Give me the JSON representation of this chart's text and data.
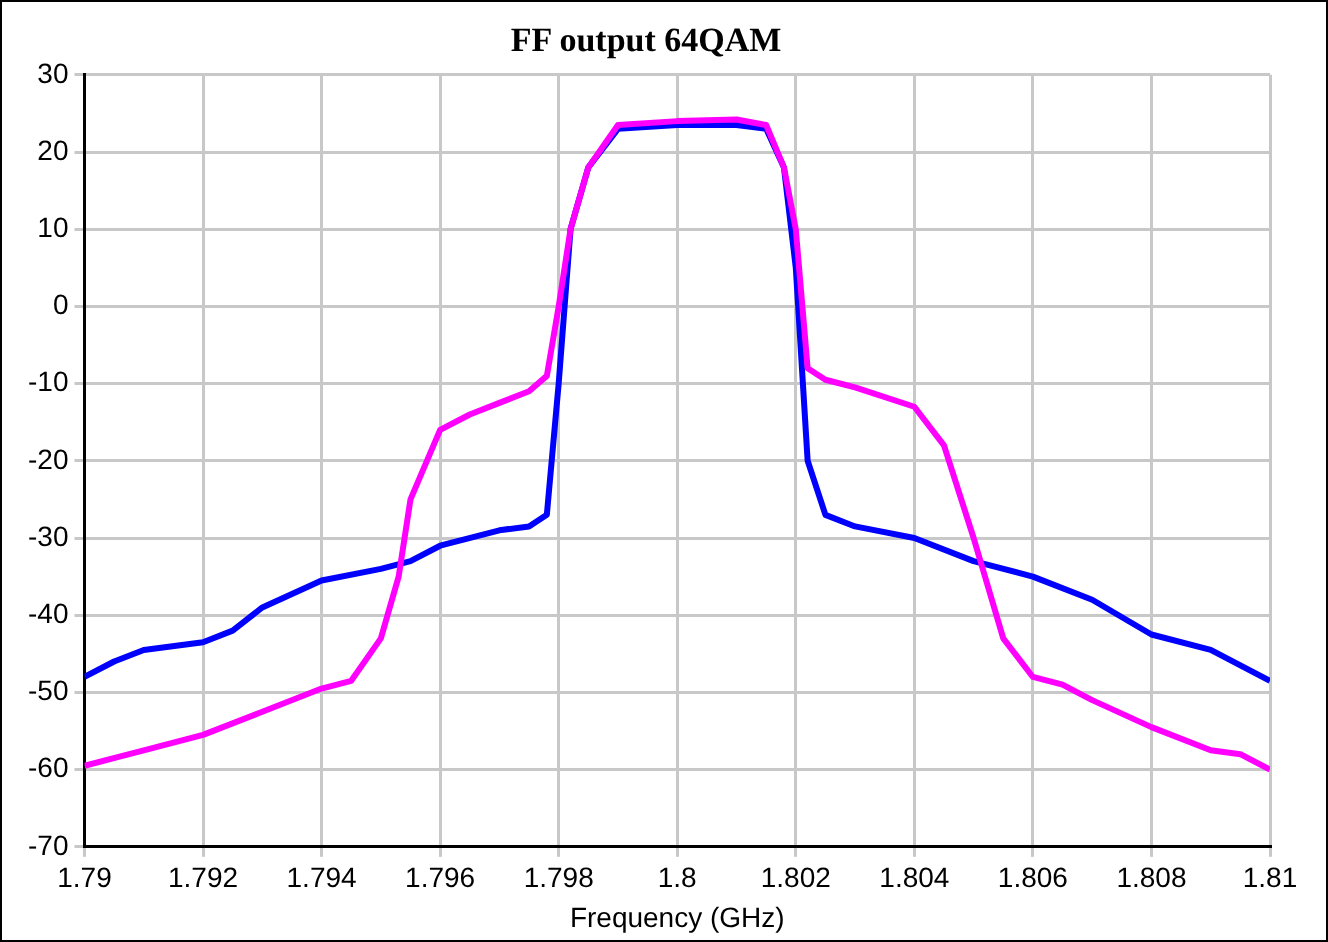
{
  "chart_data": {
    "type": "line",
    "title": "FF output 64QAM",
    "xlabel": "Frequency (GHz)",
    "xlim": [
      1.79,
      1.81
    ],
    "xticks": [
      1.79,
      1.792,
      1.794,
      1.796,
      1.798,
      1.8,
      1.802,
      1.804,
      1.806,
      1.808,
      1.81
    ],
    "ylim": [
      -70,
      30
    ],
    "yticks": [
      -70,
      -60,
      -50,
      -40,
      -30,
      -20,
      -10,
      0,
      10,
      20,
      30
    ],
    "grid": true,
    "legend": false,
    "marker": "none",
    "line_style": "solid",
    "series": [
      {
        "color": "#ff00ff",
        "x": [
          1.79,
          1.791,
          1.792,
          1.793,
          1.794,
          1.7945,
          1.795,
          1.7953,
          1.7955,
          1.796,
          1.7965,
          1.797,
          1.7975,
          1.7978,
          1.798,
          1.7982,
          1.7985,
          1.799,
          1.8,
          1.801,
          1.8015,
          1.8018,
          1.802,
          1.8022,
          1.8025,
          1.803,
          1.804,
          1.8045,
          1.805,
          1.8055,
          1.806,
          1.8065,
          1.807,
          1.808,
          1.809,
          1.8095,
          1.81
        ],
        "values": [
          -59.5,
          -57.5,
          -55.5,
          -52.5,
          -49.5,
          -48.5,
          -43,
          -35,
          -25,
          -16,
          -14,
          -12.5,
          -11,
          -9,
          0,
          10,
          18,
          23.5,
          24,
          24.2,
          23.5,
          18,
          10,
          -8,
          -9.5,
          -10.5,
          -13,
          -18,
          -30,
          -43,
          -48,
          -49,
          -51,
          -54.5,
          -57.5,
          -58,
          -60
        ]
      },
      {
        "color": "#0000ff",
        "x": [
          1.79,
          1.7905,
          1.791,
          1.792,
          1.7925,
          1.793,
          1.794,
          1.795,
          1.7955,
          1.796,
          1.797,
          1.7975,
          1.7978,
          1.798,
          1.7982,
          1.7985,
          1.799,
          1.8,
          1.801,
          1.8015,
          1.8018,
          1.802,
          1.8022,
          1.8025,
          1.803,
          1.804,
          1.805,
          1.806,
          1.807,
          1.808,
          1.809,
          1.81
        ],
        "values": [
          -48,
          -46,
          -44.5,
          -43.5,
          -42,
          -39,
          -35.5,
          -34,
          -33,
          -31,
          -29,
          -28.5,
          -27,
          -10,
          10,
          18,
          23,
          23.5,
          23.5,
          23,
          18,
          5,
          -20,
          -27,
          -28.5,
          -30,
          -33,
          -35,
          -38,
          -42.5,
          -44.5,
          -48.5
        ]
      }
    ]
  }
}
